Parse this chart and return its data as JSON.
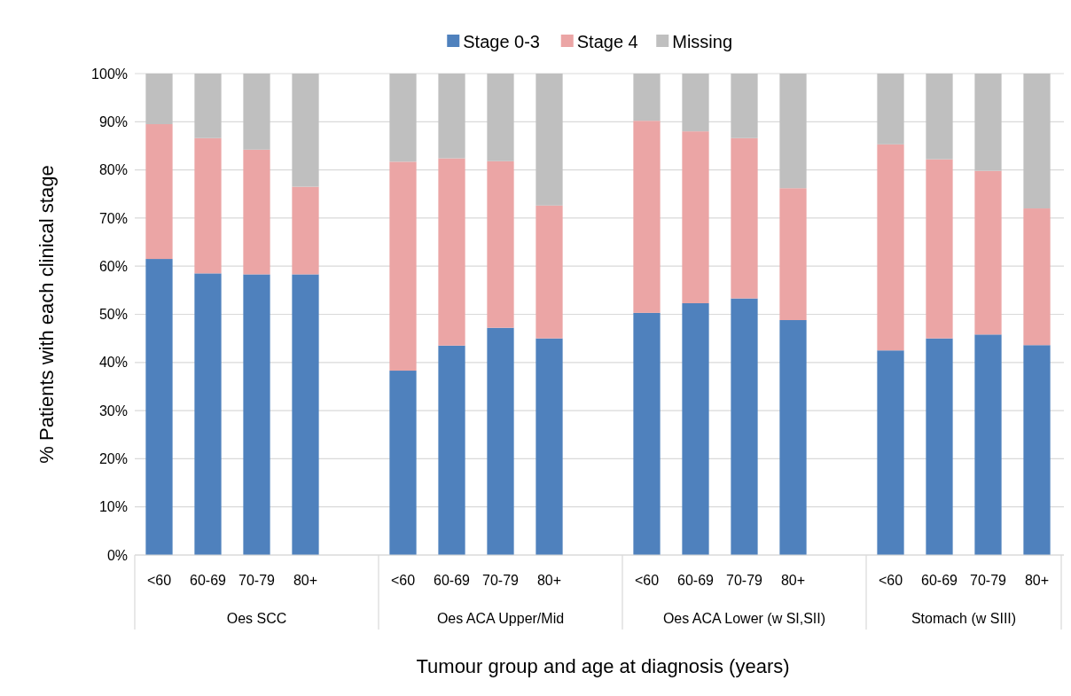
{
  "chart_data": {
    "type": "bar",
    "stacked": true,
    "xlabel": "Tumour group and age at diagnosis (years)",
    "ylabel": "% Patients with each clinical stage",
    "categories": [
      "<60",
      "60-69",
      "70-79",
      "80+",
      null,
      "<60",
      "60-69",
      "70-79",
      "80+",
      null,
      "<60",
      "60-69",
      "70-79",
      "80+",
      null,
      "<60",
      "60-69",
      "70-79",
      "80+"
    ],
    "series": [
      {
        "name": "Stage 0-3",
        "color": "#4f81bd",
        "values": [
          61.5,
          58.5,
          58.3,
          58.3,
          null,
          38.3,
          43.5,
          47.2,
          45.0,
          null,
          50.3,
          52.3,
          53.3,
          48.8,
          null,
          42.5,
          45.0,
          45.8,
          43.6
        ]
      },
      {
        "name": "Stage 4",
        "color": "#eba5a5",
        "values": [
          28.0,
          28.1,
          25.9,
          18.2,
          null,
          43.4,
          38.9,
          34.6,
          27.6,
          null,
          39.9,
          35.7,
          33.3,
          27.4,
          null,
          42.8,
          37.2,
          34.0,
          28.4
        ]
      },
      {
        "name": "Missing",
        "color": "#bfbfbf",
        "values": [
          10.5,
          13.4,
          15.8,
          23.5,
          null,
          18.3,
          17.6,
          18.2,
          27.4,
          null,
          9.8,
          12.0,
          13.4,
          23.8,
          null,
          14.7,
          17.8,
          20.2,
          28.0
        ]
      }
    ],
    "annotations": [
      "Oes SCC",
      "Oes ACA Upper/Mid",
      "Oes ACA Lower (w SI,SII)",
      "Stomach (w SIII)"
    ],
    "ylim": [
      0,
      100
    ],
    "yticks": [
      {
        "value": 0,
        "label": "0%"
      },
      {
        "value": 10,
        "label": "10%"
      },
      {
        "value": 20,
        "label": "20%"
      },
      {
        "value": 30,
        "label": "30%"
      },
      {
        "value": 40,
        "label": "40%"
      },
      {
        "value": 50,
        "label": "50%"
      },
      {
        "value": 60,
        "label": "60%"
      },
      {
        "value": 70,
        "label": "70%"
      },
      {
        "value": 80,
        "label": "80%"
      },
      {
        "value": 90,
        "label": "90%"
      },
      {
        "value": 100,
        "label": "100%"
      }
    ],
    "grid": "y",
    "legend": "top"
  }
}
